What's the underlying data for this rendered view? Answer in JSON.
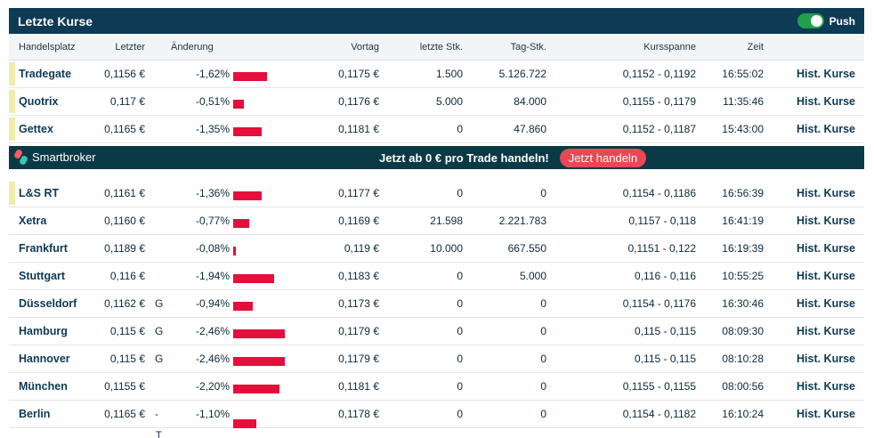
{
  "header": {
    "title": "Letzte Kurse",
    "push_label": "Push",
    "push_enabled": true
  },
  "columns": {
    "place": "Handelsplatz",
    "last": "Letzter",
    "change": "Änderung",
    "prev": "Vortag",
    "last_volume": "letzte Stk.",
    "day_volume": "Tag-Stk.",
    "range": "Kursspanne",
    "time": "Zeit"
  },
  "rows_top": [
    {
      "place": "Tradegate",
      "highlight": true,
      "last": "0,1156 €",
      "flag": "",
      "change": "-1,62%",
      "change_pct": -1.62,
      "prev": "0,1175 €",
      "last_volume": "1.500",
      "day_volume": "5.126.722",
      "range": "0,1152 - 0,1192",
      "time": "16:55:02",
      "hist": "Hist. Kurse"
    },
    {
      "place": "Quotrix",
      "highlight": true,
      "last": "0,117 €",
      "flag": "",
      "change": "-0,51%",
      "change_pct": -0.51,
      "prev": "0,1176 €",
      "last_volume": "5.000",
      "day_volume": "84.000",
      "range": "0,1155 - 0,1179",
      "time": "11:35:46",
      "hist": "Hist. Kurse"
    },
    {
      "place": "Gettex",
      "highlight": true,
      "last": "0,1165 €",
      "flag": "",
      "change": "-1,35%",
      "change_pct": -1.35,
      "prev": "0,1181 €",
      "last_volume": "0",
      "day_volume": "47.860",
      "range": "0,1152 - 0,1187",
      "time": "15:43:00",
      "hist": "Hist. Kurse"
    }
  ],
  "promo": {
    "brand": "Smartbroker",
    "text": "Jetzt ab 0 € pro Trade handeln!",
    "button": "Jetzt handeln"
  },
  "rows_bottom": [
    {
      "place": "L&S RT",
      "highlight": true,
      "last": "0,1161 €",
      "flag": "",
      "change": "-1,36%",
      "change_pct": -1.36,
      "prev": "0,1177 €",
      "last_volume": "0",
      "day_volume": "0",
      "range": "0,1154 - 0,1186",
      "time": "16:56:39",
      "hist": "Hist. Kurse"
    },
    {
      "place": "Xetra",
      "highlight": false,
      "last": "0,1160 €",
      "flag": "",
      "change": "-0,77%",
      "change_pct": -0.77,
      "prev": "0,1169 €",
      "last_volume": "21.598",
      "day_volume": "2.221.783",
      "range": "0,1157 - 0,118",
      "time": "16:41:19",
      "hist": "Hist. Kurse"
    },
    {
      "place": "Frankfurt",
      "highlight": false,
      "last": "0,1189 €",
      "flag": "",
      "change": "-0,08%",
      "change_pct": -0.08,
      "prev": "0,119 €",
      "last_volume": "10.000",
      "day_volume": "667.550",
      "range": "0,1151 - 0,122",
      "time": "16:19:39",
      "hist": "Hist. Kurse"
    },
    {
      "place": "Stuttgart",
      "highlight": false,
      "last": "0,116 €",
      "flag": "",
      "change": "-1,94%",
      "change_pct": -1.94,
      "prev": "0,1183 €",
      "last_volume": "0",
      "day_volume": "5.000",
      "range": "0,116 - 0,116",
      "time": "10:55:25",
      "hist": "Hist. Kurse"
    },
    {
      "place": "Düsseldorf",
      "highlight": false,
      "last": "0,1162 €",
      "flag": "G",
      "change": "-0,94%",
      "change_pct": -0.94,
      "prev": "0,1173 €",
      "last_volume": "0",
      "day_volume": "0",
      "range": "0,1154 - 0,1176",
      "time": "16:30:46",
      "hist": "Hist. Kurse"
    },
    {
      "place": "Hamburg",
      "highlight": false,
      "last": "0,115 €",
      "flag": "G",
      "change": "-2,46%",
      "change_pct": -2.46,
      "prev": "0,1179 €",
      "last_volume": "0",
      "day_volume": "0",
      "range": "0,115 - 0,115",
      "time": "08:09:30",
      "hist": "Hist. Kurse"
    },
    {
      "place": "Hannover",
      "highlight": false,
      "last": "0,115 €",
      "flag": "G",
      "change": "-2,46%",
      "change_pct": -2.46,
      "prev": "0,1179 €",
      "last_volume": "0",
      "day_volume": "0",
      "range": "0,115 - 0,115",
      "time": "08:10:28",
      "hist": "Hist. Kurse"
    },
    {
      "place": "München",
      "highlight": false,
      "last": "0,1155 €",
      "flag": "",
      "change": "-2,20%",
      "change_pct": -2.2,
      "prev": "0,1181 €",
      "last_volume": "0",
      "day_volume": "0",
      "range": "0,1155 - 0,1155",
      "time": "08:00:56",
      "hist": "Hist. Kurse"
    },
    {
      "place": "Berlin",
      "highlight": false,
      "last": "0,1165 €",
      "flag": "-",
      "change": "-1,10%",
      "change_pct": -1.1,
      "prev": "0,1178 €",
      "last_volume": "0",
      "day_volume": "0",
      "range": "0,1154 - 0,1182",
      "time": "16:10:24",
      "hist": "Hist. Kurse",
      "bar_low": true
    }
  ],
  "stray_glyph": "T",
  "colors": {
    "header_bg": "#0d3a54",
    "promo_bg": "#0a3a45",
    "bar": "#e60e3b",
    "highlight_marker": "#f1eca9",
    "toggle_on": "#1ea14a",
    "promo_button": "#e84855"
  }
}
